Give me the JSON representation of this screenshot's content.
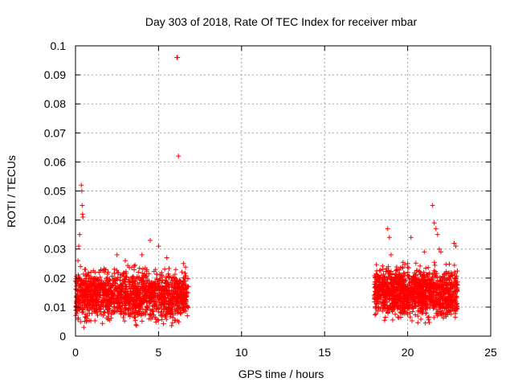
{
  "chart_data": {
    "type": "scatter",
    "title": "Day 303 of 2018, Rate Of TEC Index for receiver mbar",
    "xlabel": "GPS time / hours",
    "ylabel": "ROTI / TECUs",
    "xlim": [
      0,
      25
    ],
    "ylim": [
      0,
      0.1
    ],
    "x_ticks": [
      0,
      5,
      10,
      15,
      20,
      25
    ],
    "y_ticks": [
      0,
      0.01,
      0.02,
      0.03,
      0.04,
      0.05,
      0.06,
      0.07,
      0.08,
      0.09,
      0.1
    ],
    "x_tick_labels": [
      "0",
      "5",
      "10",
      "15",
      "20",
      "25"
    ],
    "y_tick_labels": [
      "0",
      "0.01",
      "0.02",
      "0.03",
      "0.04",
      "0.05",
      "0.06",
      "0.07",
      "0.08",
      "0.09",
      "0.1"
    ],
    "grid": true,
    "marker": "+",
    "color": "#ff0000",
    "series": [
      {
        "points": [
          [
            0.05,
            0.012
          ],
          [
            0.1,
            0.018
          ],
          [
            0.15,
            0.026
          ],
          [
            0.2,
            0.031
          ],
          [
            0.25,
            0.035
          ],
          [
            0.3,
            0.024
          ],
          [
            0.35,
            0.052
          ],
          [
            0.38,
            0.05
          ],
          [
            0.4,
            0.045
          ],
          [
            0.42,
            0.042
          ],
          [
            0.45,
            0.041
          ],
          [
            0.3,
            0.005
          ],
          [
            0.5,
            0.003
          ],
          [
            0.6,
            0.023
          ],
          [
            0.8,
            0.021
          ],
          [
            1.0,
            0.02
          ],
          [
            1.2,
            0.012
          ],
          [
            1.5,
            0.014
          ],
          [
            2.0,
            0.018
          ],
          [
            2.5,
            0.028
          ],
          [
            3.0,
            0.026
          ],
          [
            3.5,
            0.02
          ],
          [
            4.0,
            0.028
          ],
          [
            4.5,
            0.033
          ],
          [
            5.0,
            0.031
          ],
          [
            5.5,
            0.027
          ],
          [
            6.0,
            0.02
          ],
          [
            6.1,
            0.096
          ],
          [
            6.15,
            0.096
          ],
          [
            6.2,
            0.062
          ],
          [
            6.5,
            0.025
          ],
          [
            6.7,
            0.015
          ],
          [
            18.0,
            0.013
          ],
          [
            18.5,
            0.02
          ],
          [
            18.8,
            0.037
          ],
          [
            18.9,
            0.034
          ],
          [
            19.0,
            0.028
          ],
          [
            19.5,
            0.018
          ],
          [
            20.0,
            0.025
          ],
          [
            20.2,
            0.034
          ],
          [
            20.5,
            0.021
          ],
          [
            21.0,
            0.029
          ],
          [
            21.5,
            0.045
          ],
          [
            21.6,
            0.039
          ],
          [
            21.7,
            0.037
          ],
          [
            21.8,
            0.035
          ],
          [
            21.9,
            0.03
          ],
          [
            22.0,
            0.029
          ],
          [
            22.5,
            0.018
          ],
          [
            22.8,
            0.032
          ],
          [
            22.9,
            0.031
          ],
          [
            23.0,
            0.01
          ]
        ],
        "dense_bands": [
          {
            "x_range": [
              0,
              6.8
            ],
            "y_range": [
              0.002,
              0.026
            ],
            "count": 1500
          },
          {
            "x_range": [
              18,
              23
            ],
            "y_range": [
              0.003,
              0.027
            ],
            "count": 1300
          }
        ]
      }
    ]
  }
}
